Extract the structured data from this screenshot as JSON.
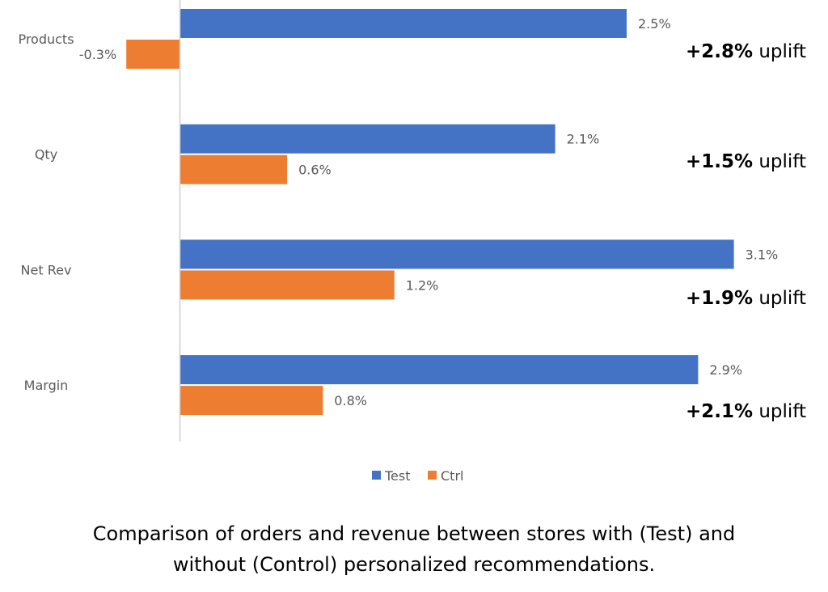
{
  "chart_data": {
    "type": "bar",
    "orientation": "horizontal",
    "categories": [
      "Products",
      "Qty",
      "Net Rev",
      "Margin"
    ],
    "series": [
      {
        "name": "Test",
        "color": "#4472C4",
        "values": [
          2.5,
          2.1,
          3.1,
          2.9
        ],
        "labels": [
          "2.5%",
          "2.1%",
          "3.1%",
          "2.9%"
        ]
      },
      {
        "name": "Ctrl",
        "color": "#ED7D31",
        "values": [
          -0.3,
          0.6,
          1.2,
          0.8
        ],
        "labels": [
          "-0.3%",
          "0.6%",
          "1.2%",
          "0.8%"
        ]
      }
    ],
    "annotations": [
      {
        "value": "+2.8%",
        "text": "uplift"
      },
      {
        "value": "+1.5%",
        "text": "uplift"
      },
      {
        "value": "+1.9%",
        "text": "uplift"
      },
      {
        "value": "+2.1%",
        "text": "uplift"
      }
    ],
    "legend_position": "bottom",
    "xlim": [
      -0.3,
      3.1
    ],
    "grid": false
  },
  "caption": [
    "Comparison of orders and revenue between stores with (Test) and",
    "without (Control) personalized recommendations."
  ]
}
